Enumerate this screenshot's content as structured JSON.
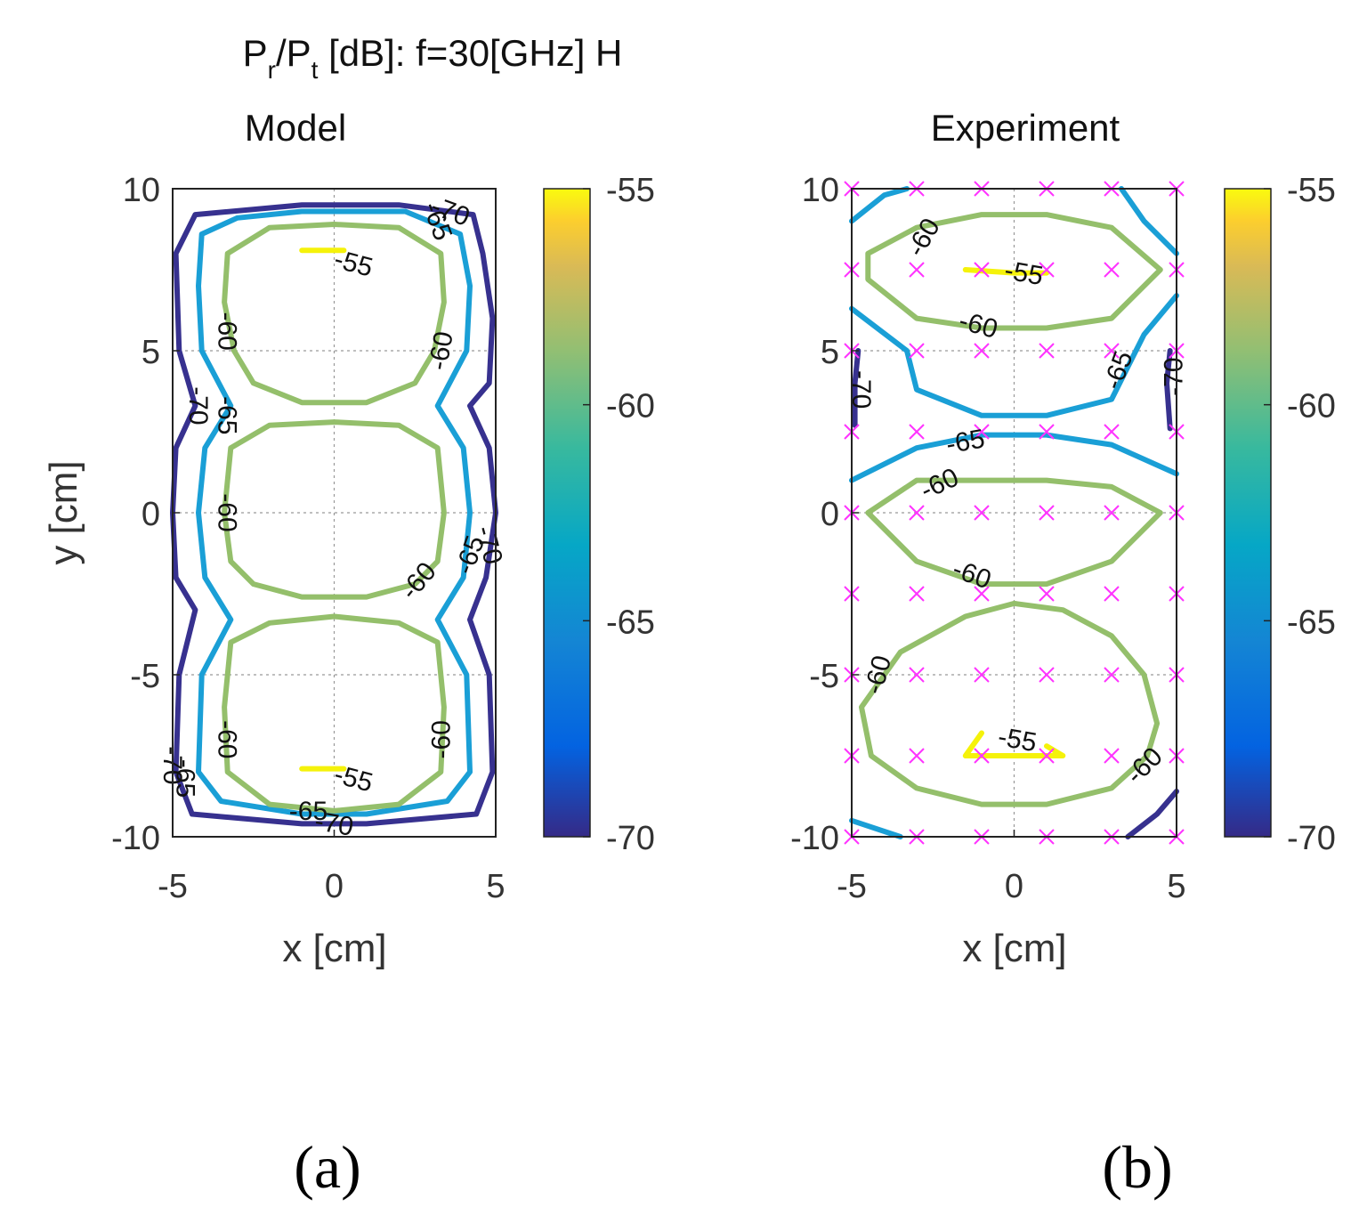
{
  "figure": {
    "suptitle": "Pr/Pt [dB]: f=30[GHz] H",
    "panel_labels": [
      "(a)",
      "(b)"
    ]
  },
  "chart_data": [
    {
      "type": "contour",
      "title": "Model",
      "xlabel": "x [cm]",
      "ylabel": "y [cm]",
      "xlim": [
        -5,
        5
      ],
      "ylim": [
        -10,
        10
      ],
      "xticks": [
        -5,
        0,
        5
      ],
      "yticks": [
        -10,
        -5,
        0,
        5,
        10
      ],
      "grid": true,
      "levels": [
        -70,
        -65,
        -60,
        -55
      ],
      "colorbar": {
        "range": [
          -70,
          -55
        ],
        "ticks": [
          -55,
          -60,
          -65,
          -70
        ]
      },
      "contours": [
        {
          "level": -70,
          "points": [
            [
              -4.3,
              9.2
            ],
            [
              -1,
              9.5
            ],
            [
              2,
              9.5
            ],
            [
              4.3,
              9.2
            ],
            [
              4.6,
              8
            ],
            [
              4.9,
              6
            ],
            [
              4.8,
              4
            ],
            [
              4.2,
              3.3
            ],
            [
              4.8,
              2
            ],
            [
              5,
              0
            ],
            [
              4.7,
              -2
            ],
            [
              4.2,
              -3.3
            ],
            [
              4.8,
              -5
            ],
            [
              4.9,
              -8
            ],
            [
              4.4,
              -9.3
            ],
            [
              1,
              -9.6
            ],
            [
              -1,
              -9.6
            ],
            [
              -4.4,
              -9.3
            ],
            [
              -4.9,
              -8
            ],
            [
              -4.8,
              -5
            ],
            [
              -4.3,
              -3
            ],
            [
              -4.9,
              -2
            ],
            [
              -5,
              0
            ],
            [
              -4.9,
              2
            ],
            [
              -4.3,
              3.3
            ],
            [
              -4.8,
              5
            ],
            [
              -4.9,
              8
            ],
            [
              -4.3,
              9.2
            ]
          ]
        },
        {
          "level": -65,
          "points": [
            [
              -4.1,
              8.6
            ],
            [
              -3,
              9.1
            ],
            [
              -1,
              9.3
            ],
            [
              2.2,
              9.3
            ],
            [
              3.9,
              8.6
            ],
            [
              4.2,
              7
            ],
            [
              4.1,
              5
            ],
            [
              3.2,
              3.3
            ],
            [
              4,
              2
            ],
            [
              4.2,
              0
            ],
            [
              4,
              -2
            ],
            [
              3.2,
              -3.3
            ],
            [
              4.1,
              -5
            ],
            [
              4.2,
              -8
            ],
            [
              3.5,
              -8.9
            ],
            [
              1,
              -9.3
            ],
            [
              -1,
              -9.3
            ],
            [
              -3.5,
              -8.9
            ],
            [
              -4.2,
              -8
            ],
            [
              -4.1,
              -5
            ],
            [
              -3.2,
              -3.3
            ],
            [
              -4,
              -2
            ],
            [
              -4.2,
              0
            ],
            [
              -4,
              2
            ],
            [
              -3.2,
              3.3
            ],
            [
              -4.1,
              5
            ],
            [
              -4.2,
              7
            ],
            [
              -4.1,
              8.6
            ]
          ]
        },
        {
          "level": -60,
          "points": [
            [
              -3.3,
              8
            ],
            [
              -2,
              8.8
            ],
            [
              0,
              8.9
            ],
            [
              2,
              8.8
            ],
            [
              3.3,
              8
            ],
            [
              3.4,
              6.5
            ],
            [
              3.1,
              5
            ],
            [
              2.5,
              4
            ],
            [
              1,
              3.4
            ],
            [
              -1,
              3.4
            ],
            [
              -2.5,
              4
            ],
            [
              -3.1,
              5
            ],
            [
              -3.4,
              6.5
            ],
            [
              -3.3,
              8
            ]
          ]
        },
        {
          "level": -60,
          "points": [
            [
              -3.2,
              2
            ],
            [
              -2,
              2.7
            ],
            [
              0,
              2.8
            ],
            [
              2,
              2.7
            ],
            [
              3.2,
              2
            ],
            [
              3.4,
              0
            ],
            [
              3.2,
              -1.5
            ],
            [
              2.5,
              -2.2
            ],
            [
              1,
              -2.6
            ],
            [
              -1,
              -2.6
            ],
            [
              -2.5,
              -2.2
            ],
            [
              -3.2,
              -1.5
            ],
            [
              -3.4,
              0
            ],
            [
              -3.2,
              2
            ]
          ]
        },
        {
          "level": -60,
          "points": [
            [
              -3.2,
              -4
            ],
            [
              -2,
              -3.4
            ],
            [
              0,
              -3.2
            ],
            [
              2,
              -3.4
            ],
            [
              3.2,
              -4
            ],
            [
              3.4,
              -6
            ],
            [
              3.3,
              -8
            ],
            [
              2,
              -9
            ],
            [
              0,
              -9.2
            ],
            [
              -2,
              -9
            ],
            [
              -3.3,
              -8
            ],
            [
              -3.4,
              -6
            ],
            [
              -3.2,
              -4
            ]
          ]
        },
        {
          "level": -55,
          "points": [
            [
              -1,
              8.1
            ],
            [
              0.3,
              8.1
            ]
          ]
        },
        {
          "level": -55,
          "points": [
            [
              -1,
              -7.9
            ],
            [
              0.3,
              -7.9
            ]
          ]
        }
      ],
      "contour_labels": [
        {
          "text": "-70",
          "at": [
            3.6,
            9.3
          ],
          "rot": 20
        },
        {
          "text": "-65",
          "at": [
            3.2,
            9.0
          ],
          "rot": 70
        },
        {
          "text": "-55",
          "at": [
            0.6,
            7.7
          ],
          "rot": 15
        },
        {
          "text": "-60",
          "at": [
            -3.3,
            5.6
          ],
          "rot": 90
        },
        {
          "text": "-60",
          "at": [
            3.3,
            5.0
          ],
          "rot": -80
        },
        {
          "text": "-70",
          "at": [
            -4.2,
            3.3
          ],
          "rot": 90
        },
        {
          "text": "-65",
          "at": [
            -3.3,
            3.0
          ],
          "rot": 90
        },
        {
          "text": "-60",
          "at": [
            -3.3,
            0.0
          ],
          "rot": 90
        },
        {
          "text": "-70",
          "at": [
            4.8,
            -1.0
          ],
          "rot": 75
        },
        {
          "text": "-65",
          "at": [
            4.2,
            -1.3
          ],
          "rot": -70
        },
        {
          "text": "-60",
          "at": [
            2.6,
            -2.1
          ],
          "rot": -50
        },
        {
          "text": "-60",
          "at": [
            -3.3,
            -7.0
          ],
          "rot": 90
        },
        {
          "text": "-60",
          "at": [
            3.3,
            -7.0
          ],
          "rot": -90
        },
        {
          "text": "-70",
          "at": [
            -5.0,
            -7.8
          ],
          "rot": 90
        },
        {
          "text": "-65",
          "at": [
            -4.6,
            -8.2
          ],
          "rot": 90
        },
        {
          "text": "-55",
          "at": [
            0.6,
            -8.2
          ],
          "rot": 15
        },
        {
          "text": "-65",
          "at": [
            -0.8,
            -9.2
          ],
          "rot": 0
        },
        {
          "text": "-70",
          "at": [
            0.0,
            -9.6
          ],
          "rot": 10
        }
      ]
    },
    {
      "type": "contour",
      "title": "Experiment",
      "xlabel": "x [cm]",
      "ylabel": "",
      "xlim": [
        -5,
        5
      ],
      "ylim": [
        -10,
        10
      ],
      "xticks": [
        -5,
        0,
        5
      ],
      "yticks": [
        -10,
        -5,
        0,
        5,
        10
      ],
      "grid": true,
      "levels": [
        -70,
        -65,
        -60,
        -55
      ],
      "colorbar": {
        "range": [
          -70,
          -55
        ],
        "ticks": [
          -55,
          -60,
          -65,
          -70
        ]
      },
      "measurement_points": {
        "x": [
          -5,
          -3,
          -1,
          1,
          3,
          5
        ],
        "y": [
          10,
          7.5,
          5,
          2.5,
          0,
          -2.5,
          -5,
          -7.5,
          -10
        ],
        "marker": "x",
        "color": "#ff33ff"
      },
      "contours": [
        {
          "level": -65,
          "points": [
            [
              -5,
              9
            ],
            [
              -4,
              9.8
            ],
            [
              -3.3,
              10
            ]
          ]
        },
        {
          "level": -65,
          "points": [
            [
              3.3,
              10
            ],
            [
              4,
              9
            ],
            [
              5,
              8
            ]
          ]
        },
        {
          "level": -65,
          "points": [
            [
              -5,
              6.3
            ],
            [
              -3.3,
              5
            ],
            [
              -3,
              3.8
            ],
            [
              -1,
              3
            ],
            [
              1,
              3
            ],
            [
              3,
              3.5
            ],
            [
              4,
              5.5
            ],
            [
              5,
              6.7
            ]
          ]
        },
        {
          "level": -65,
          "points": [
            [
              -5,
              1
            ],
            [
              -3,
              2
            ],
            [
              -1,
              2.4
            ],
            [
              1,
              2.4
            ],
            [
              3,
              2.1
            ],
            [
              5,
              1.2
            ]
          ]
        },
        {
          "level": -65,
          "points": [
            [
              -5,
              -9.5
            ],
            [
              -3.5,
              -10
            ]
          ]
        },
        {
          "level": -70,
          "points": [
            [
              -4.8,
              5
            ],
            [
              -4.9,
              4
            ],
            [
              -4.9,
              2.7
            ]
          ]
        },
        {
          "level": -70,
          "points": [
            [
              4.8,
              5
            ],
            [
              4.7,
              4
            ],
            [
              4.8,
              2.6
            ]
          ]
        },
        {
          "level": -70,
          "points": [
            [
              3.5,
              -10
            ],
            [
              4.4,
              -9.3
            ],
            [
              5,
              -8.6
            ]
          ]
        },
        {
          "level": -60,
          "points": [
            [
              -4.5,
              8
            ],
            [
              -3,
              8.8
            ],
            [
              -1,
              9.2
            ],
            [
              1,
              9.2
            ],
            [
              3,
              8.8
            ],
            [
              4.5,
              7.5
            ],
            [
              3,
              6
            ],
            [
              1,
              5.7
            ],
            [
              -1,
              5.7
            ],
            [
              -3,
              6
            ],
            [
              -4.5,
              7.2
            ],
            [
              -4.5,
              8
            ]
          ]
        },
        {
          "level": -60,
          "points": [
            [
              -4.5,
              0
            ],
            [
              -3,
              1
            ],
            [
              -1,
              1
            ],
            [
              1,
              1
            ],
            [
              3,
              0.8
            ],
            [
              4.5,
              0
            ],
            [
              3,
              -1.5
            ],
            [
              1,
              -2.2
            ],
            [
              -1,
              -2.2
            ],
            [
              -3,
              -1.5
            ],
            [
              -4.5,
              0
            ]
          ]
        },
        {
          "level": -60,
          "points": [
            [
              -4.7,
              -6
            ],
            [
              -3.5,
              -4.3
            ],
            [
              -1.5,
              -3.2
            ],
            [
              0,
              -2.8
            ],
            [
              1.5,
              -3
            ],
            [
              3,
              -3.8
            ],
            [
              4,
              -5
            ],
            [
              4.4,
              -6.5
            ],
            [
              4.1,
              -7.5
            ],
            [
              3,
              -8.5
            ],
            [
              1,
              -9
            ],
            [
              -1,
              -9
            ],
            [
              -3,
              -8.5
            ],
            [
              -4.4,
              -7.5
            ],
            [
              -4.7,
              -6
            ]
          ]
        },
        {
          "level": -55,
          "points": [
            [
              -1.5,
              7.5
            ],
            [
              0,
              7.4
            ],
            [
              1,
              7.4
            ]
          ]
        },
        {
          "level": -55,
          "points": [
            [
              -1,
              -6.8
            ],
            [
              -1.5,
              -7.5
            ],
            [
              0,
              -7.5
            ],
            [
              1.5,
              -7.5
            ],
            [
              1,
              -7.2
            ]
          ]
        }
      ],
      "contour_labels": [
        {
          "text": "-60",
          "at": [
            -2.8,
            8.5
          ],
          "rot": -60
        },
        {
          "text": "-55",
          "at": [
            0.3,
            7.4
          ],
          "rot": 10
        },
        {
          "text": "-60",
          "at": [
            -1.1,
            5.8
          ],
          "rot": 15
        },
        {
          "text": "-65",
          "at": [
            3.2,
            4.4
          ],
          "rot": -70
        },
        {
          "text": "-70",
          "at": [
            4.9,
            4.2
          ],
          "rot": -90
        },
        {
          "text": "-70",
          "at": [
            -4.7,
            3.8
          ],
          "rot": 90
        },
        {
          "text": "-65",
          "at": [
            -1.5,
            2.2
          ],
          "rot": -10
        },
        {
          "text": "-60",
          "at": [
            -2.3,
            0.9
          ],
          "rot": -25
        },
        {
          "text": "-60",
          "at": [
            -1.3,
            -1.9
          ],
          "rot": 20
        },
        {
          "text": "-60",
          "at": [
            -4.2,
            -5.0
          ],
          "rot": -75
        },
        {
          "text": "-55",
          "at": [
            0.1,
            -7.0
          ],
          "rot": 10
        },
        {
          "text": "-60",
          "at": [
            4.0,
            -7.8
          ],
          "rot": -45
        }
      ]
    }
  ]
}
